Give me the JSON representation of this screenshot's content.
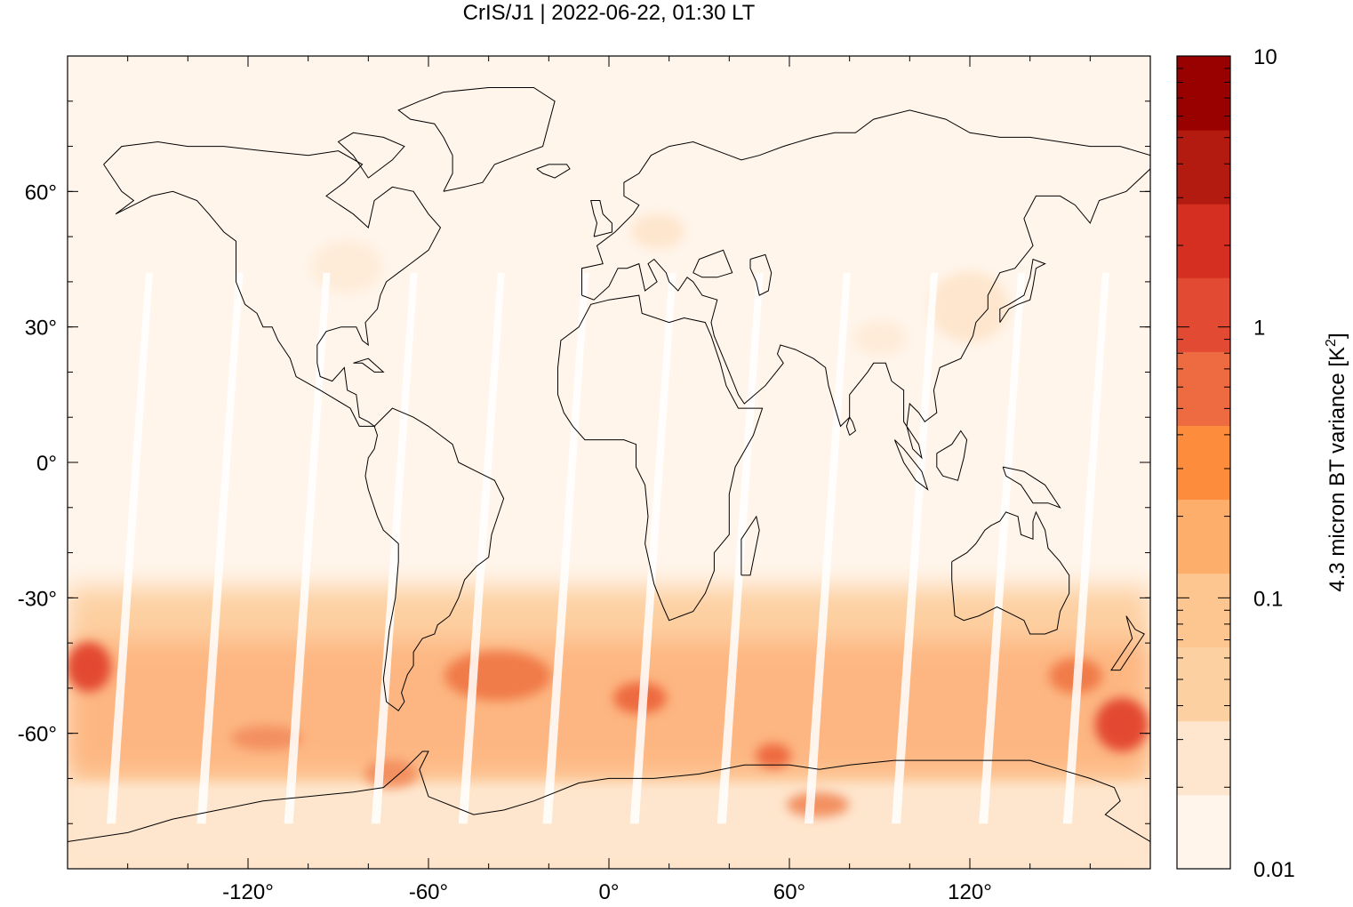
{
  "title": "CrIS/J1 | 2022-06-22, 01:30 LT",
  "map": {
    "projection": "plate-carree",
    "lon_range": [
      -180,
      180
    ],
    "lat_range": [
      -90,
      90
    ],
    "x_ticks": [
      {
        "value": -120,
        "label": "-120°"
      },
      {
        "value": -60,
        "label": "-60°"
      },
      {
        "value": 0,
        "label": "0°"
      },
      {
        "value": 60,
        "label": "60°"
      },
      {
        "value": 120,
        "label": "120°"
      }
    ],
    "y_ticks": [
      {
        "value": 60,
        "label": "60°"
      },
      {
        "value": 30,
        "label": "30°"
      },
      {
        "value": 0,
        "label": "0°"
      },
      {
        "value": -30,
        "label": "-30°"
      },
      {
        "value": -60,
        "label": "-60°"
      }
    ],
    "background_color": "#fff5eb",
    "coastline_color": "#000000"
  },
  "colorbar": {
    "label_main": "4.3 micron BT variance [K",
    "label_sup": "2",
    "label_end": "]",
    "scale": "log",
    "range": [
      0.01,
      10
    ],
    "ticks": [
      {
        "value": 10,
        "label": "10"
      },
      {
        "value": 1,
        "label": "1"
      },
      {
        "value": 0.1,
        "label": "0.1"
      },
      {
        "value": 0.01,
        "label": "0.01"
      }
    ],
    "colors": [
      "#fff5eb",
      "#fee6ce",
      "#fdd0a2",
      "#fdc58f",
      "#fdae6b",
      "#fd8d3c",
      "#ee6a40",
      "#e34a33",
      "#d42f20",
      "#b31b10",
      "#990000"
    ]
  }
}
